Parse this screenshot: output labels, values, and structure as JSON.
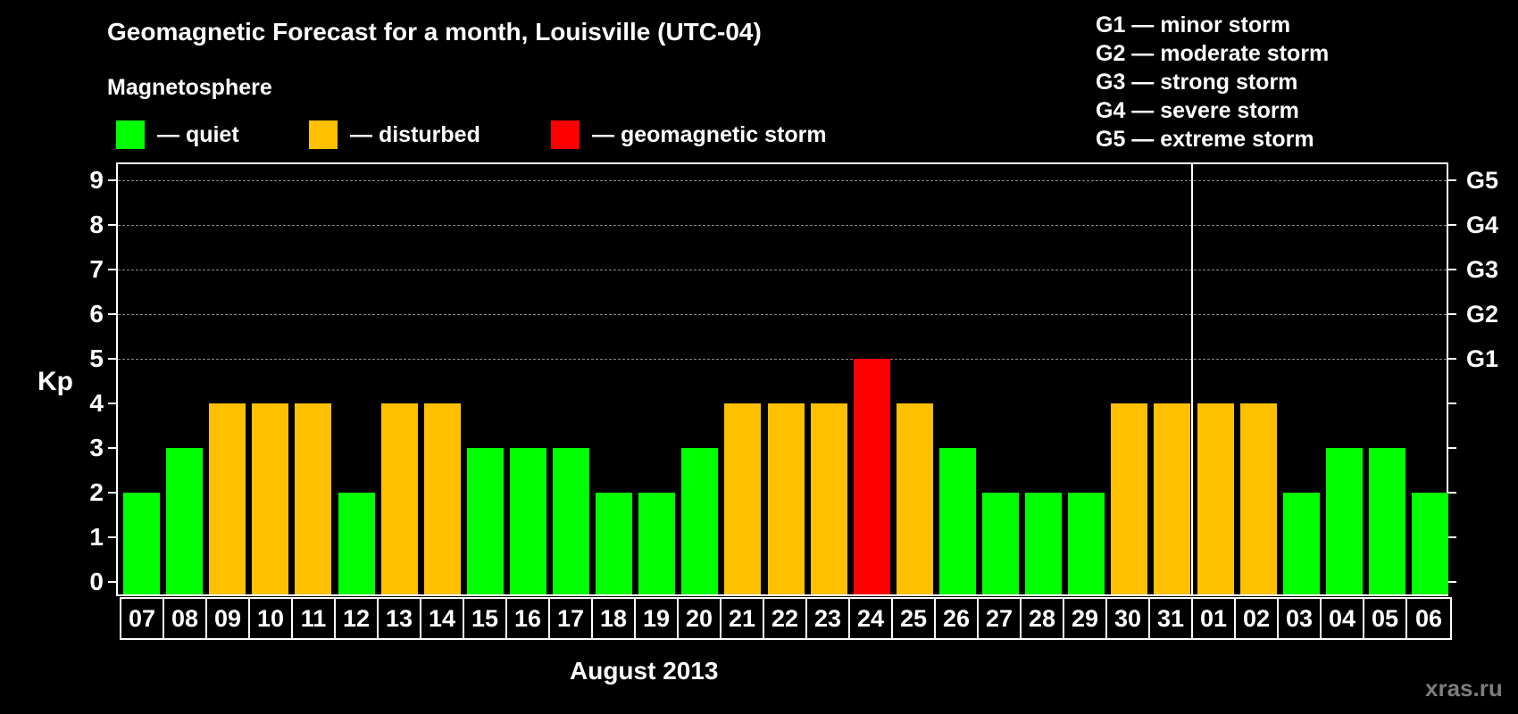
{
  "header": {
    "title": "Geomagnetic Forecast for a month, Louisville (UTC-04)",
    "subtitle": "Magnetosphere"
  },
  "legend": [
    {
      "label": "— quiet",
      "color": "#00ff00"
    },
    {
      "label": "— disturbed",
      "color": "#ffc000"
    },
    {
      "label": "— geomagnetic storm",
      "color": "#ff0000"
    }
  ],
  "g_scale": [
    "G1 — minor storm",
    "G2 — moderate storm",
    "G3 — strong storm",
    "G4 — severe storm",
    "G5 — extreme storm"
  ],
  "axis": {
    "ylabel": "Kp",
    "yticks": [
      "0",
      "1",
      "2",
      "3",
      "4",
      "5",
      "6",
      "7",
      "8",
      "9"
    ],
    "right_ticks": {
      "5": "G1",
      "6": "G2",
      "7": "G3",
      "8": "G4",
      "9": "G5"
    },
    "xlabel": "August 2013"
  },
  "watermark": "xras.ru",
  "chart_data": {
    "type": "bar",
    "title": "Geomagnetic Forecast for a month, Louisville (UTC-04)",
    "subtitle": "Magnetosphere",
    "xlabel": "August 2013",
    "ylabel": "Kp",
    "ylim": [
      0,
      9
    ],
    "grid": "dashed horizontal at Kp 5-9",
    "legend_position": "top",
    "categories": [
      "07",
      "08",
      "09",
      "10",
      "11",
      "12",
      "13",
      "14",
      "15",
      "16",
      "17",
      "18",
      "19",
      "20",
      "21",
      "22",
      "23",
      "24",
      "25",
      "26",
      "27",
      "28",
      "29",
      "30",
      "31",
      "01",
      "02",
      "03",
      "04",
      "05",
      "06"
    ],
    "values": [
      2,
      3,
      4,
      4,
      4,
      2,
      4,
      4,
      3,
      3,
      3,
      2,
      2,
      3,
      4,
      4,
      4,
      5,
      4,
      3,
      2,
      2,
      2,
      4,
      4,
      4,
      4,
      2,
      3,
      3,
      2
    ],
    "status": [
      "quiet",
      "quiet",
      "disturbed",
      "disturbed",
      "disturbed",
      "quiet",
      "disturbed",
      "disturbed",
      "quiet",
      "quiet",
      "quiet",
      "quiet",
      "quiet",
      "quiet",
      "disturbed",
      "disturbed",
      "disturbed",
      "storm",
      "disturbed",
      "quiet",
      "quiet",
      "quiet",
      "quiet",
      "disturbed",
      "disturbed",
      "disturbed",
      "disturbed",
      "quiet",
      "quiet",
      "quiet",
      "quiet"
    ],
    "status_colors": {
      "quiet": "#00ff00",
      "disturbed": "#ffc000",
      "storm": "#ff0000"
    },
    "right_axis_labels": {
      "5": "G1",
      "6": "G2",
      "7": "G3",
      "8": "G4",
      "9": "G5"
    },
    "month_divider_after": "31"
  }
}
